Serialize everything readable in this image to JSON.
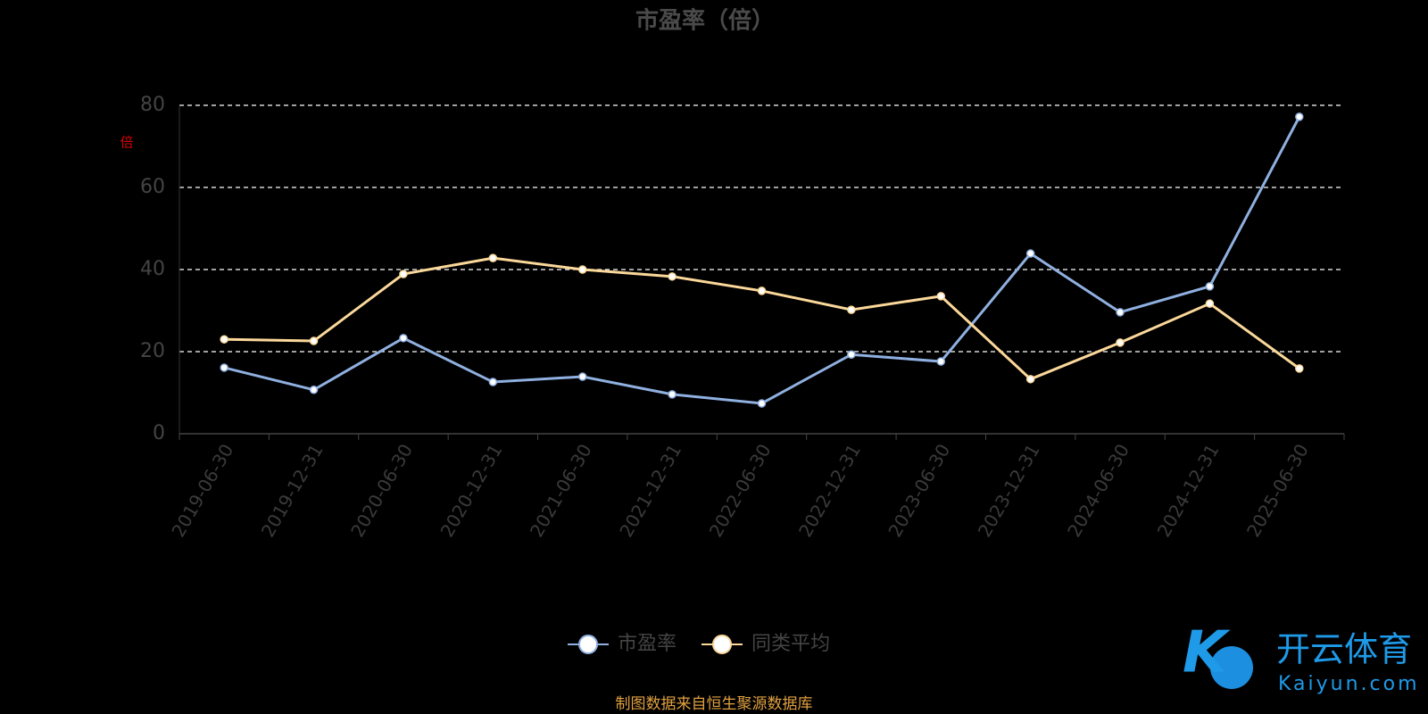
{
  "chart_data": {
    "type": "line",
    "title": "市盈率（倍）",
    "y_label": "倍",
    "categories": [
      "2019-06-30",
      "2019-12-31",
      "2020-06-30",
      "2020-12-31",
      "2021-06-30",
      "2021-12-31",
      "2022-06-30",
      "2022-12-31",
      "2023-06-30",
      "2023-12-31",
      "2024-06-30",
      "2024-12-31",
      "2025-06-30"
    ],
    "series": [
      {
        "name": "市盈率",
        "color": "#8fb0e0",
        "values": [
          16.1,
          10.7,
          23.3,
          12.6,
          13.9,
          9.6,
          7.4,
          19.3,
          17.6,
          43.9,
          29.6,
          35.9,
          77.2
        ]
      },
      {
        "name": "同类平均",
        "color": "#fbd89a",
        "values": [
          23.0,
          22.6,
          38.9,
          42.8,
          40.0,
          38.3,
          34.8,
          30.2,
          33.5,
          13.3,
          22.2,
          31.7,
          15.9
        ]
      }
    ],
    "ylim": [
      0,
      80
    ],
    "yticks": [
      0,
      20,
      40,
      60,
      80
    ],
    "grid": true,
    "legend": "bottom"
  },
  "source": "制图数据来自恒生聚源数据库",
  "watermark": {
    "name": "开云体育",
    "site": "Kaiyun.com"
  }
}
